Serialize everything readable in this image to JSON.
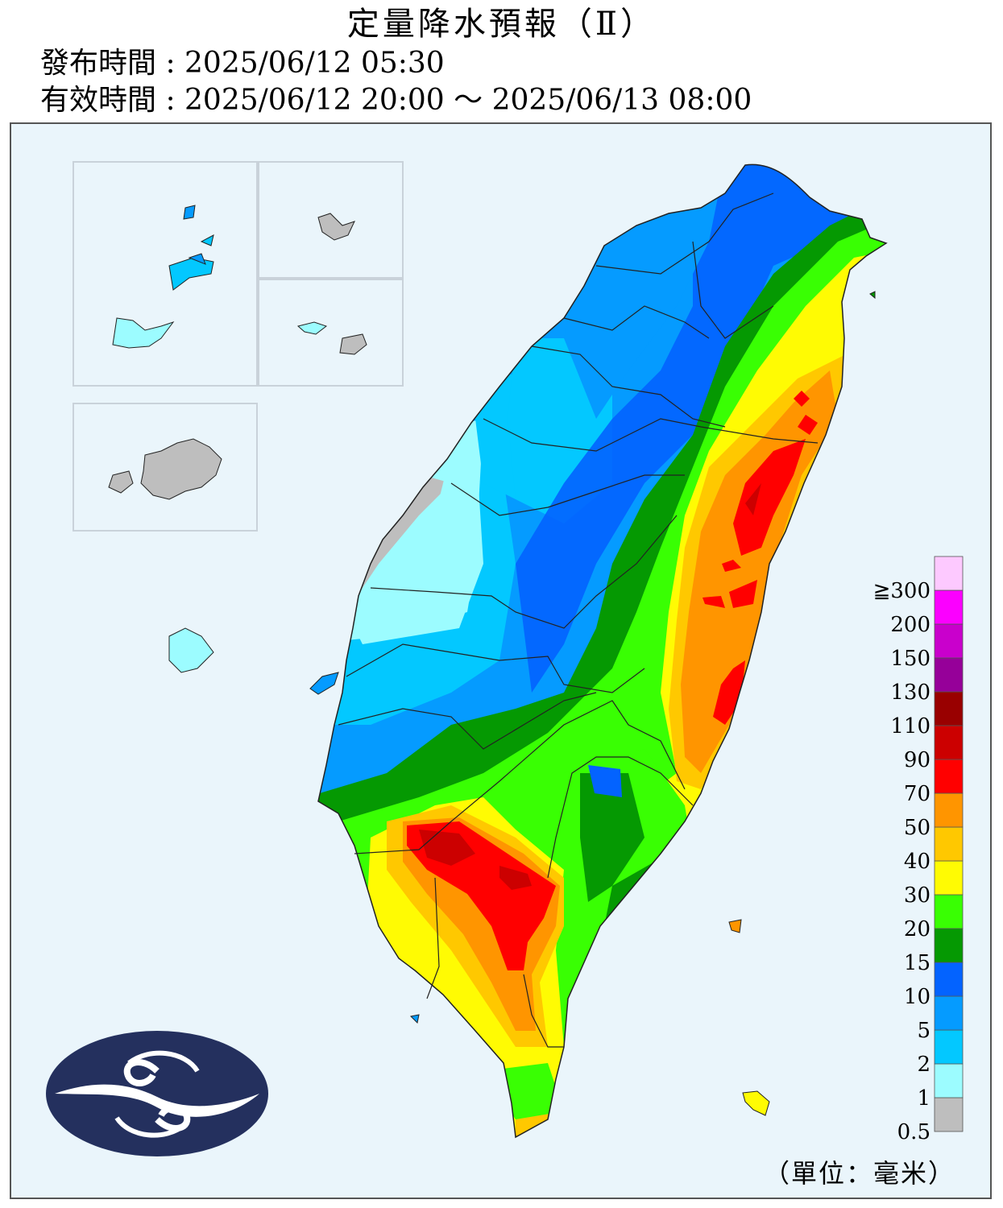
{
  "header": {
    "title": "定量降水預報（Ⅱ）",
    "issue_label": "發布時間 : 2025/06/12 05:30",
    "valid_label": "有效時間 : 2025/06/12 20:00 ～ 2025/06/13 08:00"
  },
  "legend": {
    "unit": "（單位：毫米）",
    "bins": [
      {
        "label": "0.5",
        "color": "#bebebe"
      },
      {
        "label": "1",
        "color": "#9cfcff"
      },
      {
        "label": "2",
        "color": "#03c8ff"
      },
      {
        "label": "5",
        "color": "#059bff"
      },
      {
        "label": "10",
        "color": "#0363ff"
      },
      {
        "label": "15",
        "color": "#059902"
      },
      {
        "label": "20",
        "color": "#39ff03"
      },
      {
        "label": "30",
        "color": "#fffb03"
      },
      {
        "label": "40",
        "color": "#ffc800"
      },
      {
        "label": "50",
        "color": "#ff9500"
      },
      {
        "label": "70",
        "color": "#ff0000"
      },
      {
        "label": "90",
        "color": "#cc0000"
      },
      {
        "label": "110",
        "color": "#990000"
      },
      {
        "label": "130",
        "color": "#960099"
      },
      {
        "label": "150",
        "color": "#c900cc"
      },
      {
        "label": "200",
        "color": "#fb00ff"
      },
      {
        "label": "≧300",
        "color": "#fdc9ff"
      }
    ]
  },
  "colors": {
    "land_border": "#222222",
    "logo_bg": "#24305e",
    "logo_fg": "#ffffff"
  },
  "icons": [
    "cwa-logo-icon"
  ]
}
